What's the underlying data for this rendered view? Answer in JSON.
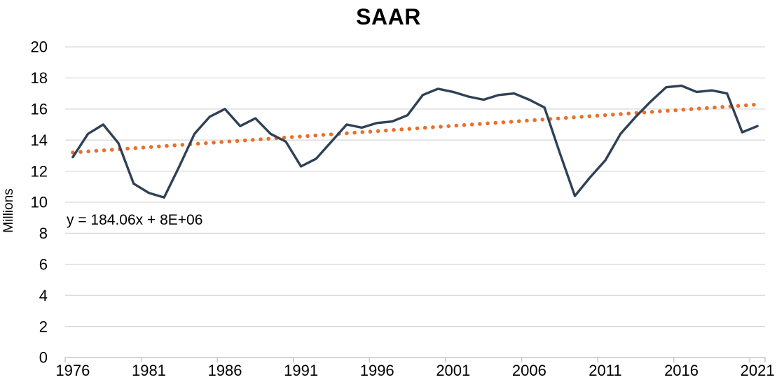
{
  "chart_data": {
    "type": "line",
    "title": "SAAR",
    "ylabel": "Millions",
    "xlabel": "",
    "ylim": [
      0,
      20
    ],
    "ytick_step": 2,
    "grid": true,
    "legend_position": "none",
    "x": [
      1976,
      1977,
      1978,
      1979,
      1980,
      1981,
      1982,
      1983,
      1984,
      1985,
      1986,
      1987,
      1988,
      1989,
      1990,
      1991,
      1992,
      1993,
      1994,
      1995,
      1996,
      1997,
      1998,
      1999,
      2000,
      2001,
      2002,
      2003,
      2004,
      2005,
      2006,
      2007,
      2008,
      2009,
      2010,
      2011,
      2012,
      2013,
      2014,
      2015,
      2016,
      2017,
      2018,
      2019,
      2020,
      2021
    ],
    "xtick_labels": [
      "1976",
      "1981",
      "1986",
      "1991",
      "1996",
      "2001",
      "2006",
      "2011",
      "2016",
      "2021"
    ],
    "xtick_interval": 5,
    "series": [
      {
        "name": "SAAR",
        "color": "#2E4156",
        "values": [
          12.9,
          14.4,
          15.0,
          13.8,
          11.2,
          10.6,
          10.3,
          12.3,
          14.4,
          15.5,
          16.0,
          14.9,
          15.4,
          14.4,
          13.9,
          12.3,
          12.8,
          13.9,
          15.0,
          14.8,
          15.1,
          15.2,
          15.6,
          16.9,
          17.3,
          17.1,
          16.8,
          16.6,
          16.9,
          17.0,
          16.6,
          16.1,
          13.2,
          10.4,
          11.6,
          12.7,
          14.4,
          15.5,
          16.5,
          17.4,
          17.5,
          17.1,
          17.2,
          17.0,
          14.5,
          14.9
        ]
      }
    ],
    "trendline": {
      "label": "y = 184.06x + 8E+06",
      "color": "#E8702A",
      "style": "dotted",
      "start_value": 13.2,
      "end_value": 16.3
    },
    "colors": {
      "gridline": "#D9D9D9",
      "axis_line": "#C6C6C6",
      "text": "#000000"
    }
  }
}
